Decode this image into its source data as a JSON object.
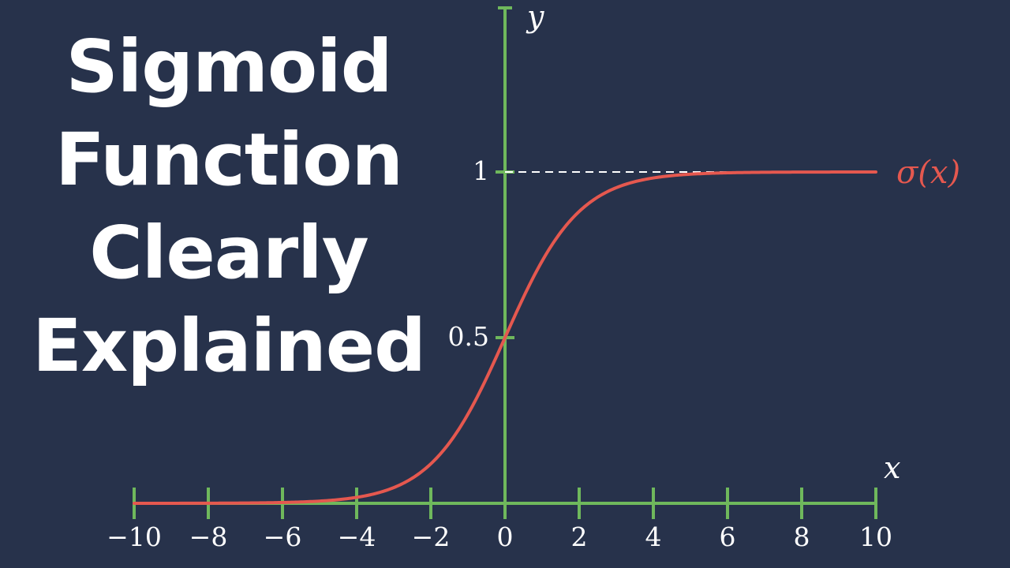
{
  "title_lines": [
    "Sigmoid",
    "Function",
    "Clearly",
    "Explained"
  ],
  "chart_data": {
    "type": "line",
    "function": "sigmoid",
    "series": [
      {
        "name": "σ(x)",
        "color": "#e5584f",
        "x": [
          -10,
          -8,
          -6,
          -4,
          -3,
          -2,
          -1,
          -0.5,
          0,
          0.5,
          1,
          2,
          3,
          4,
          6,
          8,
          10
        ],
        "y": [
          4.54e-05,
          0.000335,
          0.00247,
          0.018,
          0.0474,
          0.119,
          0.269,
          0.378,
          0.5,
          0.622,
          0.731,
          0.881,
          0.953,
          0.982,
          0.9975,
          0.99966,
          0.99995
        ]
      }
    ],
    "xlabel": "x",
    "ylabel": "y",
    "xlim": [
      -10,
      10
    ],
    "ylim": [
      0,
      1
    ],
    "x_ticks": [
      -10,
      -8,
      -6,
      -4,
      -2,
      0,
      2,
      4,
      6,
      8,
      10
    ],
    "x_tick_labels": [
      "−10",
      "−8",
      "−6",
      "−4",
      "−2",
      "0",
      "2",
      "4",
      "6",
      "8",
      "10"
    ],
    "y_ticks": [
      0.5,
      1
    ],
    "y_tick_labels": [
      "0.5",
      "1"
    ],
    "asymptote_y": 1,
    "axis_color": "#6fb85c",
    "asymptote_color": "#ffffff",
    "grid": false
  }
}
